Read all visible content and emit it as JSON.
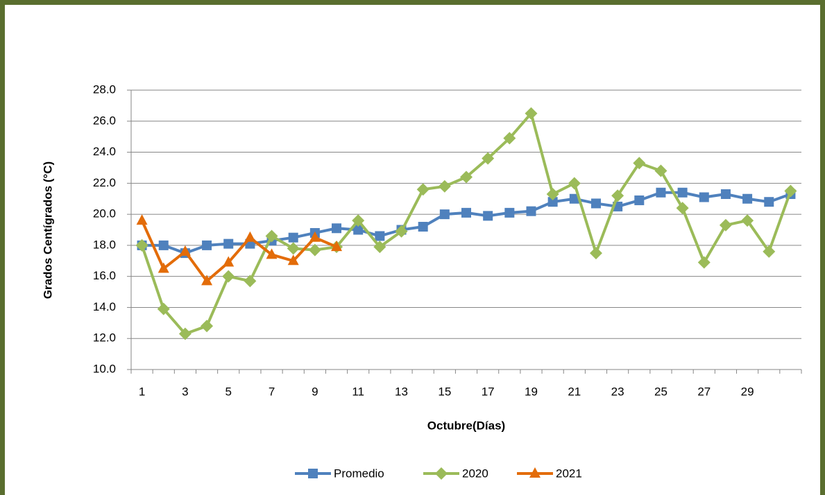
{
  "chart_data": {
    "type": "line",
    "xlabel": "Octubre(Días)",
    "ylabel": "Grados Centígrados  (°C)",
    "categories": [
      "1",
      null,
      "3",
      null,
      "5",
      null,
      "7",
      null,
      "9",
      null,
      "11",
      null,
      "13",
      null,
      "15",
      null,
      "17",
      null,
      "19",
      null,
      "21",
      null,
      "23",
      null,
      "25",
      null,
      "27",
      null,
      "29",
      null,
      null
    ],
    "series": [
      {
        "name": "Promedio",
        "color": "#4f81bd",
        "marker": "square",
        "values": [
          18.0,
          18.0,
          17.5,
          18.0,
          18.1,
          18.1,
          18.3,
          18.5,
          18.8,
          19.1,
          19.0,
          18.6,
          19.0,
          19.2,
          20.0,
          20.1,
          19.9,
          20.1,
          20.2,
          20.8,
          21.0,
          20.7,
          20.5,
          20.9,
          21.4,
          21.4,
          21.1,
          21.3,
          21.0,
          20.8,
          21.3
        ]
      },
      {
        "name": "2020",
        "color": "#9bbb59",
        "marker": "diamond",
        "values": [
          18.0,
          13.9,
          12.3,
          12.8,
          16.0,
          15.7,
          18.6,
          17.8,
          17.7,
          17.9,
          19.6,
          17.9,
          18.9,
          21.6,
          21.8,
          22.4,
          23.6,
          24.9,
          26.5,
          21.3,
          22.0,
          17.5,
          21.2,
          23.3,
          22.8,
          20.4,
          16.9,
          19.3,
          19.6,
          17.6,
          21.5
        ]
      },
      {
        "name": "2021",
        "color": "#e36c09",
        "marker": "triangle",
        "values": [
          19.6,
          16.5,
          17.6,
          15.7,
          16.9,
          18.5,
          17.4,
          17.0,
          18.5,
          17.9,
          null,
          null,
          null,
          null,
          null,
          null,
          null,
          null,
          null,
          null,
          null,
          null,
          null,
          null,
          null,
          null,
          null,
          null,
          null,
          null,
          null
        ]
      }
    ],
    "ylim": [
      10,
      28
    ],
    "yticks": [
      {
        "value": 10,
        "label": "10.0"
      },
      {
        "value": 12,
        "label": "12.0"
      },
      {
        "value": 14,
        "label": "14.0"
      },
      {
        "value": 16,
        "label": "16.0"
      },
      {
        "value": 18,
        "label": "18.0"
      },
      {
        "value": 20,
        "label": "20.0"
      },
      {
        "value": 22,
        "label": "22.0"
      },
      {
        "value": 24,
        "label": "24.0"
      },
      {
        "value": 26,
        "label": "26.0"
      },
      {
        "value": 28,
        "label": "28.0"
      }
    ],
    "grid": true,
    "legend": "bottom"
  }
}
